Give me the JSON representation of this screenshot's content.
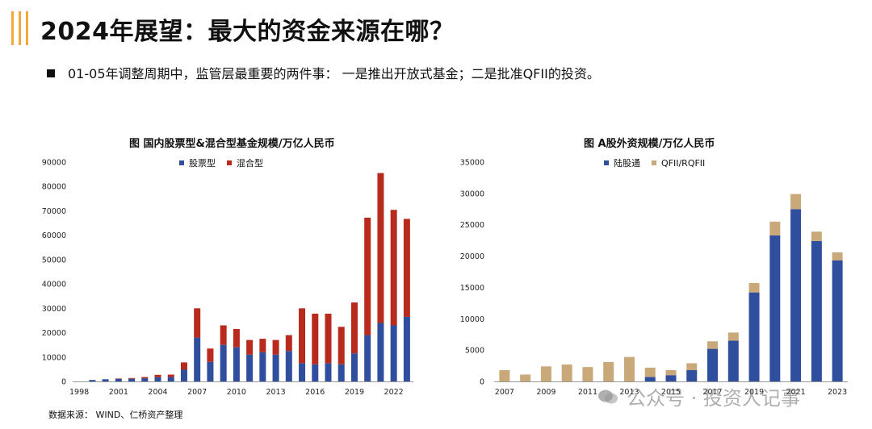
{
  "header": {
    "title": "2024年展望：最大的资金来源在哪？",
    "bullet": "01-05年调整周期中，监管层最重要的两件事：  一是推出开放式基金；二是批准QFII的投资。"
  },
  "footer": {
    "source": "数据来源：  WIND、仁桥资产整理",
    "watermark": "公众号 · 投资人记事"
  },
  "colors": {
    "accent": "#f2a93b",
    "stock": "#2f4f9e",
    "mixed": "#b82a1e",
    "qfii": "#c9a97a"
  },
  "chart_data": [
    {
      "type": "bar",
      "stacked": true,
      "title": "图 国内股票型&混合型基金规模/万亿人民币",
      "ylim": [
        0,
        90000
      ],
      "yticks": [
        0,
        10000,
        20000,
        30000,
        40000,
        50000,
        60000,
        70000,
        80000,
        90000
      ],
      "categories": [
        "1998",
        "1999",
        "2000",
        "2001",
        "2002",
        "2003",
        "2004",
        "2005",
        "2006",
        "2007",
        "2008",
        "2009",
        "2010",
        "2011",
        "2012",
        "2013",
        "2014",
        "2015",
        "2016",
        "2017",
        "2018",
        "2019",
        "2020",
        "2021",
        "2022",
        "2023"
      ],
      "xtick_labels": [
        "1998",
        "2001",
        "2004",
        "2007",
        "2010",
        "2013",
        "2016",
        "2019",
        "2022"
      ],
      "series": [
        {
          "name": "股票型",
          "color": "#2f4f9e",
          "values": [
            0,
            600,
            900,
            1000,
            1100,
            1300,
            1700,
            1800,
            4800,
            18000,
            8000,
            15000,
            14000,
            11000,
            12000,
            11000,
            12500,
            7500,
            7000,
            7500,
            7000,
            11500,
            19000,
            24000,
            23000,
            26500
          ]
        },
        {
          "name": "混合型",
          "color": "#b82a1e",
          "values": [
            0,
            0,
            0,
            200,
            300,
            500,
            1000,
            1000,
            3000,
            12000,
            5500,
            8000,
            7500,
            6000,
            5500,
            6000,
            6500,
            22500,
            20800,
            20300,
            15400,
            20900,
            48200,
            61500,
            47400,
            40200
          ]
        }
      ]
    },
    {
      "type": "bar",
      "stacked": true,
      "title": "图 A股外资规模/万亿人民币",
      "ylim": [
        0,
        35000
      ],
      "yticks": [
        0,
        5000,
        10000,
        15000,
        20000,
        25000,
        30000,
        35000
      ],
      "categories": [
        "2007",
        "2008",
        "2009",
        "2010",
        "2011",
        "2012",
        "2013",
        "2014",
        "2015",
        "2016",
        "2017",
        "2018",
        "2019",
        "2020",
        "2021",
        "2022",
        "2023"
      ],
      "xtick_labels": [
        "2007",
        "2009",
        "2011",
        "2013",
        "2015",
        "2017",
        "2019",
        "2021",
        "2023"
      ],
      "series": [
        {
          "name": "陆股通",
          "color": "#2f4f9e",
          "values": [
            0,
            0,
            0,
            0,
            0,
            0,
            0,
            700,
            1000,
            1800,
            5200,
            6500,
            14200,
            23300,
            27500,
            22400,
            19300
          ]
        },
        {
          "name": "QFII/RQFII",
          "color": "#c9a97a",
          "values": [
            1800,
            1100,
            2400,
            2700,
            2300,
            3100,
            3900,
            1500,
            800,
            1100,
            1200,
            1300,
            1500,
            2200,
            2400,
            1500,
            1300
          ]
        }
      ]
    }
  ]
}
